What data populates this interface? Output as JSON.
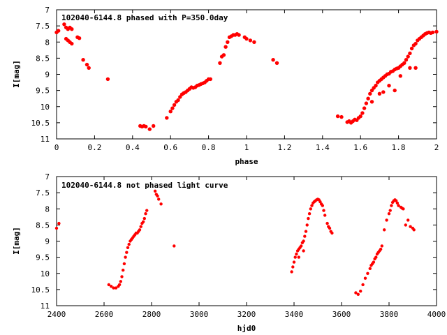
{
  "chart_data": [
    {
      "type": "scatter",
      "title": "102040-6144.8 phased with P=350.0day",
      "xlabel": "phase",
      "ylabel": "I[mag]",
      "xlim": [
        0,
        2
      ],
      "ylim": [
        7,
        11
      ],
      "y_inverted": true,
      "xticks": [
        "0",
        "0.2",
        "0.4",
        "0.6",
        "0.8",
        "1",
        "1.2",
        "1.4",
        "1.6",
        "1.8",
        "2"
      ],
      "yticks": [
        "7",
        "7.5",
        "8",
        "8.5",
        "9",
        "9.5",
        "10",
        "10.5",
        "11"
      ],
      "marker_color": "#ff0000",
      "series": [
        {
          "x": [
            0.0,
            0.01,
            0.04,
            0.05,
            0.06,
            0.07,
            0.08,
            0.05,
            0.06,
            0.07,
            0.08,
            0.11,
            0.12,
            0.14,
            0.16,
            0.17,
            0.27,
            0.44,
            0.45,
            0.46,
            0.47,
            0.49,
            0.51,
            0.58,
            0.6,
            0.61,
            0.62,
            0.63,
            0.64,
            0.65,
            0.66,
            0.67,
            0.68,
            0.69,
            0.7,
            0.71,
            0.72,
            0.73,
            0.74,
            0.75,
            0.76,
            0.77,
            0.78,
            0.79,
            0.8,
            0.81,
            0.86,
            0.87,
            0.88,
            0.89,
            0.9,
            0.91,
            0.92,
            0.93,
            0.94,
            0.95,
            0.96,
            0.99,
            1.0,
            1.02,
            1.04,
            1.14,
            1.16,
            1.48,
            1.5,
            1.53,
            1.54,
            1.55,
            1.56,
            1.57,
            1.58,
            1.59,
            1.6,
            1.61,
            1.62,
            1.63,
            1.64,
            1.65,
            1.66,
            1.67,
            1.68,
            1.69,
            1.7,
            1.71,
            1.72,
            1.73,
            1.74,
            1.75,
            1.76,
            1.77,
            1.78,
            1.79,
            1.8,
            1.81,
            1.82,
            1.83,
            1.84,
            1.85,
            1.86,
            1.87,
            1.88,
            1.89,
            1.9,
            1.91,
            1.92,
            1.93,
            1.94,
            1.95,
            1.96,
            1.97,
            1.98,
            2.0,
            1.66,
            1.7,
            1.72,
            1.75,
            1.78,
            1.81,
            1.86,
            1.89
          ],
          "y": [
            7.7,
            7.65,
            7.45,
            7.55,
            7.6,
            7.55,
            7.6,
            7.9,
            7.95,
            8.0,
            8.05,
            7.85,
            7.88,
            8.55,
            8.7,
            8.8,
            9.15,
            10.6,
            10.62,
            10.6,
            10.62,
            10.7,
            10.6,
            10.35,
            10.15,
            10.05,
            9.95,
            9.85,
            9.8,
            9.7,
            9.62,
            9.58,
            9.55,
            9.5,
            9.45,
            9.4,
            9.42,
            9.4,
            9.35,
            9.33,
            9.3,
            9.28,
            9.25,
            9.2,
            9.15,
            9.15,
            8.65,
            8.45,
            8.4,
            8.15,
            8.0,
            7.85,
            7.82,
            7.78,
            7.78,
            7.75,
            7.78,
            7.85,
            7.9,
            7.95,
            8.0,
            8.55,
            8.65,
            10.3,
            10.32,
            10.48,
            10.45,
            10.5,
            10.45,
            10.4,
            10.42,
            10.35,
            10.3,
            10.2,
            10.05,
            9.9,
            9.75,
            9.6,
            9.5,
            9.42,
            9.35,
            9.25,
            9.2,
            9.15,
            9.1,
            9.05,
            9.0,
            8.98,
            8.92,
            8.9,
            8.85,
            8.82,
            8.8,
            8.75,
            8.7,
            8.65,
            8.55,
            8.45,
            8.35,
            8.2,
            8.1,
            8.05,
            7.95,
            7.9,
            7.85,
            7.8,
            7.75,
            7.72,
            7.7,
            7.72,
            7.7,
            7.68,
            9.85,
            9.6,
            9.55,
            9.35,
            9.5,
            9.05,
            8.8,
            8.8
          ]
        }
      ]
    },
    {
      "type": "scatter",
      "title": "102040-6144.8 not phased light curve",
      "xlabel": "hjd0",
      "ylabel": "I[mag]",
      "xlim": [
        2400,
        4000
      ],
      "ylim": [
        7,
        11
      ],
      "y_inverted": true,
      "xticks": [
        "2400",
        "2600",
        "2800",
        "3000",
        "3200",
        "3400",
        "3600",
        "3800",
        "4000"
      ],
      "yticks": [
        "7",
        "7.5",
        "8",
        "8.5",
        "9",
        "9.5",
        "10",
        "10.5",
        "11"
      ],
      "marker_color": "#ff0000",
      "series": [
        {
          "x": [
            2400,
            2410,
            2620,
            2630,
            2640,
            2650,
            2660,
            2665,
            2670,
            2675,
            2680,
            2685,
            2690,
            2695,
            2700,
            2705,
            2710,
            2715,
            2720,
            2725,
            2730,
            2735,
            2740,
            2745,
            2750,
            2755,
            2760,
            2765,
            2770,
            2775,
            2780,
            2815,
            2820,
            2825,
            2830,
            2840,
            2895,
            3390,
            3395,
            3400,
            3405,
            3410,
            3415,
            3420,
            3425,
            3430,
            3435,
            3440,
            3445,
            3450,
            3455,
            3460,
            3465,
            3470,
            3475,
            3480,
            3485,
            3490,
            3495,
            3500,
            3505,
            3510,
            3515,
            3520,
            3525,
            3530,
            3540,
            3545,
            3550,
            3555,
            3560,
            3660,
            3670,
            3680,
            3690,
            3700,
            3710,
            3720,
            3725,
            3730,
            3735,
            3740,
            3745,
            3750,
            3755,
            3760,
            3765,
            3770,
            3780,
            3790,
            3800,
            3805,
            3810,
            3815,
            3820,
            3825,
            3830,
            3835,
            3840,
            3850,
            3855,
            3860,
            3870,
            3880,
            3890,
            3900,
            3905,
            3420,
            3440
          ],
          "y": [
            8.6,
            8.45,
            10.35,
            10.4,
            10.45,
            10.45,
            10.4,
            10.35,
            10.25,
            10.1,
            9.9,
            9.7,
            9.5,
            9.35,
            9.2,
            9.1,
            9.0,
            8.95,
            8.9,
            8.85,
            8.8,
            8.75,
            8.75,
            8.7,
            8.65,
            8.55,
            8.45,
            8.4,
            8.3,
            8.15,
            8.05,
            7.45,
            7.55,
            7.6,
            7.7,
            7.85,
            9.15,
            9.95,
            9.8,
            9.65,
            9.5,
            9.4,
            9.3,
            9.25,
            9.2,
            9.15,
            9.05,
            9.0,
            8.85,
            8.7,
            8.5,
            8.3,
            8.15,
            8.0,
            7.9,
            7.82,
            7.78,
            7.75,
            7.72,
            7.7,
            7.72,
            7.78,
            7.85,
            7.9,
            8.05,
            8.2,
            8.45,
            8.55,
            8.6,
            8.7,
            8.75,
            10.6,
            10.65,
            10.55,
            10.35,
            10.15,
            10.0,
            9.85,
            9.75,
            9.7,
            9.65,
            9.55,
            9.5,
            9.4,
            9.35,
            9.3,
            9.25,
            9.15,
            8.65,
            8.35,
            8.15,
            8.05,
            7.9,
            7.8,
            7.75,
            7.72,
            7.75,
            7.82,
            7.9,
            7.95,
            7.98,
            8.0,
            8.5,
            8.35,
            8.55,
            8.6,
            8.65,
            9.5,
            9.3
          ]
        }
      ]
    }
  ]
}
